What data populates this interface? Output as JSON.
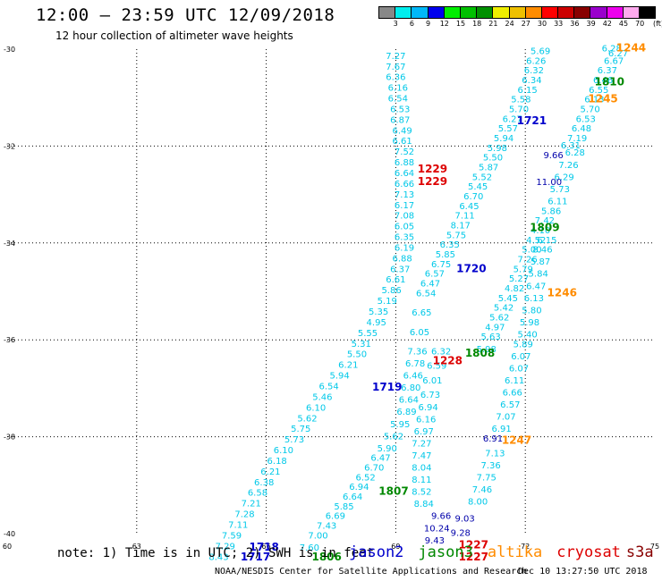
{
  "header": {
    "title": "12:00 – 23:59 UTC 12/09/2018",
    "subtitle": "12 hour collection of altimeter wave heights"
  },
  "scale": {
    "colors": [
      "#888888",
      "#00eeee",
      "#00b8f8",
      "#0000ee",
      "#00ee00",
      "#00c000",
      "#009000",
      "#eeee00",
      "#eec000",
      "#ff8c00",
      "#ff0000",
      "#cc0000",
      "#880000",
      "#9a00cc",
      "#ee00ee",
      "#ffaaee",
      "#000000"
    ],
    "labels": [
      "3",
      "6",
      "9",
      "12",
      "15",
      "18",
      "21",
      "24",
      "27",
      "30",
      "33",
      "36",
      "39",
      "42",
      "45",
      "70"
    ],
    "unit": "(ft)"
  },
  "colors": {
    "jason2": "#0000cc",
    "jason3": "#008800",
    "altika": "#ff8c00",
    "cryosat": "#dd0000",
    "s3a": "#880000",
    "swh": "#00c8e8",
    "swh_dark": "#0000aa",
    "grid": "#000000"
  },
  "map": {
    "x_ticks": [
      "60",
      "63",
      "66",
      "69",
      "72",
      "75"
    ],
    "y_ticks": [
      "-30",
      "-32",
      "-34",
      "-36",
      "-38",
      "-40"
    ]
  },
  "swh_labels": [
    {
      "v": "7.27",
      "lon": 69.0,
      "lat": -30.2
    },
    {
      "v": "7.67",
      "lon": 69.0,
      "lat": -30.42
    },
    {
      "v": "6.36",
      "lon": 69.0,
      "lat": -30.64
    },
    {
      "v": "6.16",
      "lon": 69.05,
      "lat": -30.86
    },
    {
      "v": "6.54",
      "lon": 69.05,
      "lat": -31.08
    },
    {
      "v": "6.53",
      "lon": 69.1,
      "lat": -31.3
    },
    {
      "v": "6.87",
      "lon": 69.1,
      "lat": -31.52
    },
    {
      "v": "6.49",
      "lon": 69.15,
      "lat": -31.74
    },
    {
      "v": "6.61",
      "lon": 69.15,
      "lat": -31.96
    },
    {
      "v": "7.52",
      "lon": 69.2,
      "lat": -32.18
    },
    {
      "v": "6.88",
      "lon": 69.2,
      "lat": -32.4
    },
    {
      "v": "6.64",
      "lon": 69.2,
      "lat": -32.62
    },
    {
      "v": "6.66",
      "lon": 69.2,
      "lat": -32.84
    },
    {
      "v": "7.13",
      "lon": 69.2,
      "lat": -33.06
    },
    {
      "v": "6.17",
      "lon": 69.2,
      "lat": -33.28
    },
    {
      "v": "7.08",
      "lon": 69.2,
      "lat": -33.5
    },
    {
      "v": "6.05",
      "lon": 69.2,
      "lat": -33.72
    },
    {
      "v": "6.35",
      "lon": 69.2,
      "lat": -33.94
    },
    {
      "v": "6.19",
      "lon": 69.2,
      "lat": -34.16
    },
    {
      "v": "6.88",
      "lon": 69.15,
      "lat": -34.38
    },
    {
      "v": "6.37",
      "lon": 69.1,
      "lat": -34.6
    },
    {
      "v": "6.61",
      "lon": 69.0,
      "lat": -34.82
    },
    {
      "v": "5.86",
      "lon": 68.9,
      "lat": -35.04
    },
    {
      "v": "5.19",
      "lon": 68.8,
      "lat": -35.26
    },
    {
      "v": "5.35",
      "lon": 68.6,
      "lat": -35.48
    },
    {
      "v": "4.95",
      "lon": 68.55,
      "lat": -35.7
    },
    {
      "v": "5.55",
      "lon": 68.35,
      "lat": -35.92
    },
    {
      "v": "5.31",
      "lon": 68.2,
      "lat": -36.14
    },
    {
      "v": "5.50",
      "lon": 68.1,
      "lat": -36.36
    },
    {
      "v": "6.21",
      "lon": 67.9,
      "lat": -36.58
    },
    {
      "v": "5.94",
      "lon": 67.7,
      "lat": -36.8
    },
    {
      "v": "6.54",
      "lon": 67.45,
      "lat": -37.02
    },
    {
      "v": "5.46",
      "lon": 67.3,
      "lat": -37.24
    },
    {
      "v": "6.10",
      "lon": 67.15,
      "lat": -37.46
    },
    {
      "v": "5.62",
      "lon": 66.95,
      "lat": -37.68
    },
    {
      "v": "5.75",
      "lon": 66.8,
      "lat": -37.9
    },
    {
      "v": "5.73",
      "lon": 66.65,
      "lat": -38.12
    },
    {
      "v": "6.10",
      "lon": 66.4,
      "lat": -38.34
    },
    {
      "v": "6.18",
      "lon": 66.25,
      "lat": -38.56
    },
    {
      "v": "6.21",
      "lon": 66.1,
      "lat": -38.78
    },
    {
      "v": "6.38",
      "lon": 65.95,
      "lat": -39.0
    },
    {
      "v": "6.58",
      "lon": 65.8,
      "lat": -39.22
    },
    {
      "v": "7.21",
      "lon": 65.65,
      "lat": -39.44
    },
    {
      "v": "7.28",
      "lon": 65.5,
      "lat": -39.66
    },
    {
      "v": "7.11",
      "lon": 65.35,
      "lat": -39.88
    },
    {
      "v": "7.59",
      "lon": 65.2,
      "lat": -40.1
    },
    {
      "v": "7.29",
      "lon": 65.05,
      "lat": -40.32
    },
    {
      "v": "8.43",
      "lon": 64.9,
      "lat": -40.54
    },
    {
      "v": "5.69",
      "lon": 72.35,
      "lat": -30.1
    },
    {
      "v": "6.26",
      "lon": 72.25,
      "lat": -30.3
    },
    {
      "v": "6.32",
      "lon": 72.2,
      "lat": -30.5
    },
    {
      "v": "6.34",
      "lon": 72.15,
      "lat": -30.7
    },
    {
      "v": "6.15",
      "lon": 72.05,
      "lat": -30.9
    },
    {
      "v": "5.58",
      "lon": 71.9,
      "lat": -31.1
    },
    {
      "v": "5.70",
      "lon": 71.85,
      "lat": -31.3
    },
    {
      "v": "6.27",
      "lon": 71.7,
      "lat": -31.5
    },
    {
      "v": "5.57",
      "lon": 71.6,
      "lat": -31.7
    },
    {
      "v": "5.94",
      "lon": 71.5,
      "lat": -31.9
    },
    {
      "v": "5.98",
      "lon": 71.35,
      "lat": -32.1
    },
    {
      "v": "5.50",
      "lon": 71.25,
      "lat": -32.3
    },
    {
      "v": "5.87",
      "lon": 71.15,
      "lat": -32.5
    },
    {
      "v": "5.52",
      "lon": 71.0,
      "lat": -32.7
    },
    {
      "v": "5.45",
      "lon": 70.9,
      "lat": -32.9
    },
    {
      "v": "6.70",
      "lon": 70.8,
      "lat": -33.1
    },
    {
      "v": "6.45",
      "lon": 70.7,
      "lat": -33.3
    },
    {
      "v": "7.11",
      "lon": 70.6,
      "lat": -33.5
    },
    {
      "v": "8.17",
      "lon": 70.5,
      "lat": -33.7
    },
    {
      "v": "5.75",
      "lon": 70.4,
      "lat": -33.9
    },
    {
      "v": "6.35",
      "lon": 70.25,
      "lat": -34.1
    },
    {
      "v": "5.85",
      "lon": 70.15,
      "lat": -34.3
    },
    {
      "v": "6.75",
      "lon": 70.05,
      "lat": -34.5
    },
    {
      "v": "6.57",
      "lon": 69.9,
      "lat": -34.7
    },
    {
      "v": "6.47",
      "lon": 69.8,
      "lat": -34.9
    },
    {
      "v": "6.54",
      "lon": 69.7,
      "lat": -35.1
    },
    {
      "v": "6.65",
      "lon": 69.6,
      "lat": -35.5
    },
    {
      "v": "6.05",
      "lon": 69.55,
      "lat": -35.9
    },
    {
      "v": "7.36",
      "lon": 69.5,
      "lat": -36.3
    },
    {
      "v": "6.78",
      "lon": 69.45,
      "lat": -36.55
    },
    {
      "v": "6.46",
      "lon": 69.4,
      "lat": -36.8
    },
    {
      "v": "6.80",
      "lon": 69.35,
      "lat": -37.05
    },
    {
      "v": "6.64",
      "lon": 69.3,
      "lat": -37.3
    },
    {
      "v": "6.89",
      "lon": 69.25,
      "lat": -37.55
    },
    {
      "v": "5.95",
      "lon": 69.1,
      "lat": -37.8
    },
    {
      "v": "5.62",
      "lon": 68.95,
      "lat": -38.05
    },
    {
      "v": "5.90",
      "lon": 68.8,
      "lat": -38.3
    },
    {
      "v": "6.47",
      "lon": 68.65,
      "lat": -38.5
    },
    {
      "v": "6.70",
      "lon": 68.5,
      "lat": -38.7
    },
    {
      "v": "6.52",
      "lon": 68.3,
      "lat": -38.9
    },
    {
      "v": "6.94",
      "lon": 68.15,
      "lat": -39.1
    },
    {
      "v": "6.64",
      "lon": 68.0,
      "lat": -39.3
    },
    {
      "v": "5.85",
      "lon": 67.8,
      "lat": -39.5
    },
    {
      "v": "6.69",
      "lon": 67.6,
      "lat": -39.7
    },
    {
      "v": "7.43",
      "lon": 67.4,
      "lat": -39.9
    },
    {
      "v": "7.00",
      "lon": 67.2,
      "lat": -40.1
    },
    {
      "v": "7.60",
      "lon": 67.0,
      "lat": -40.35
    },
    {
      "v": "6.28",
      "lon": 74.0,
      "lat": -30.05
    },
    {
      "v": "6.27",
      "lon": 74.15,
      "lat": -30.15
    },
    {
      "v": "6.67",
      "lon": 74.05,
      "lat": -30.3
    },
    {
      "v": "6.37",
      "lon": 73.9,
      "lat": -30.5
    },
    {
      "v": "6.46",
      "lon": 73.8,
      "lat": -30.7
    },
    {
      "v": "6.55",
      "lon": 73.7,
      "lat": -30.9
    },
    {
      "v": "6.13",
      "lon": 73.6,
      "lat": -31.1
    },
    {
      "v": "5.70",
      "lon": 73.5,
      "lat": -31.3
    },
    {
      "v": "6.53",
      "lon": 73.4,
      "lat": -31.5
    },
    {
      "v": "6.48",
      "lon": 73.3,
      "lat": -31.7
    },
    {
      "v": "7.19",
      "lon": 73.2,
      "lat": -31.9
    },
    {
      "v": "6.31",
      "lon": 73.05,
      "lat": -32.05
    },
    {
      "v": "6.28",
      "lon": 73.15,
      "lat": -32.2
    },
    {
      "v": "7.26",
      "lon": 73.0,
      "lat": -32.45
    },
    {
      "v": "6.29",
      "lon": 72.9,
      "lat": -32.7
    },
    {
      "v": "5.73",
      "lon": 72.8,
      "lat": -32.95
    },
    {
      "v": "6.11",
      "lon": 72.75,
      "lat": -33.2
    },
    {
      "v": "5.86",
      "lon": 72.6,
      "lat": -33.4
    },
    {
      "v": "7.42",
      "lon": 72.45,
      "lat": -33.6
    },
    {
      "v": "4.10",
      "lon": 72.35,
      "lat": -33.8
    },
    {
      "v": "4.52",
      "lon": 72.25,
      "lat": -34.0
    },
    {
      "v": "6.15",
      "lon": 72.5,
      "lat": -34.0
    },
    {
      "v": "5.00",
      "lon": 72.15,
      "lat": -34.2
    },
    {
      "v": "8.46",
      "lon": 72.4,
      "lat": -34.2
    },
    {
      "v": "7.26",
      "lon": 72.05,
      "lat": -34.4
    },
    {
      "v": "5.87",
      "lon": 72.35,
      "lat": -34.45
    },
    {
      "v": "5.79",
      "lon": 71.95,
      "lat": -34.6
    },
    {
      "v": "5.84",
      "lon": 72.3,
      "lat": -34.7
    },
    {
      "v": "5.27",
      "lon": 71.85,
      "lat": -34.8
    },
    {
      "v": "6.47",
      "lon": 72.25,
      "lat": -34.95
    },
    {
      "v": "4.82",
      "lon": 71.75,
      "lat": -35.0
    },
    {
      "v": "5.45",
      "lon": 71.6,
      "lat": -35.2
    },
    {
      "v": "6.13",
      "lon": 72.2,
      "lat": -35.2
    },
    {
      "v": "5.42",
      "lon": 71.5,
      "lat": -35.4
    },
    {
      "v": "5.80",
      "lon": 72.15,
      "lat": -35.45
    },
    {
      "v": "5.62",
      "lon": 71.4,
      "lat": -35.6
    },
    {
      "v": "5.98",
      "lon": 72.1,
      "lat": -35.7
    },
    {
      "v": "4.97",
      "lon": 71.3,
      "lat": -35.8
    },
    {
      "v": "5.40",
      "lon": 72.05,
      "lat": -35.95
    },
    {
      "v": "5.63",
      "lon": 71.2,
      "lat": -36.0
    },
    {
      "v": "5.89",
      "lon": 71.95,
      "lat": -36.15
    },
    {
      "v": "5.98",
      "lon": 71.1,
      "lat": -36.25
    },
    {
      "v": "6.07",
      "lon": 71.9,
      "lat": -36.4
    },
    {
      "v": "6.07",
      "lon": 71.85,
      "lat": -36.65
    },
    {
      "v": "6.11",
      "lon": 71.75,
      "lat": -36.9
    },
    {
      "v": "6.66",
      "lon": 71.7,
      "lat": -37.15
    },
    {
      "v": "6.57",
      "lon": 71.65,
      "lat": -37.4
    },
    {
      "v": "7.07",
      "lon": 71.55,
      "lat": -37.65
    },
    {
      "v": "6.91",
      "lon": 71.45,
      "lat": -37.9
    },
    {
      "v": "7.13",
      "lon": 71.3,
      "lat": -38.4
    },
    {
      "v": "7.36",
      "lon": 71.2,
      "lat": -38.65
    },
    {
      "v": "7.75",
      "lon": 71.1,
      "lat": -38.9
    },
    {
      "v": "7.46",
      "lon": 71.0,
      "lat": -39.15
    },
    {
      "v": "8.00",
      "lon": 70.9,
      "lat": -39.4
    },
    {
      "v": "6.32",
      "lon": 70.05,
      "lat": -36.3
    },
    {
      "v": "6.59",
      "lon": 69.95,
      "lat": -36.6
    },
    {
      "v": "6.01",
      "lon": 69.85,
      "lat": -36.9
    },
    {
      "v": "6.73",
      "lon": 69.8,
      "lat": -37.2
    },
    {
      "v": "6.94",
      "lon": 69.75,
      "lat": -37.45
    },
    {
      "v": "6.16",
      "lon": 69.7,
      "lat": -37.7
    },
    {
      "v": "6.97",
      "lon": 69.65,
      "lat": -37.95
    },
    {
      "v": "7.27",
      "lon": 69.6,
      "lat": -38.2
    },
    {
      "v": "7.47",
      "lon": 69.6,
      "lat": -38.45
    },
    {
      "v": "8.04",
      "lon": 69.6,
      "lat": -38.7
    },
    {
      "v": "8.11",
      "lon": 69.6,
      "lat": -38.95
    },
    {
      "v": "8.52",
      "lon": 69.6,
      "lat": -39.2
    },
    {
      "v": "8.84",
      "lon": 69.65,
      "lat": -39.45
    }
  ],
  "swh_dark_labels": [
    {
      "v": "9.66",
      "lon": 72.65,
      "lat": -32.25
    },
    {
      "v": "11.00",
      "lon": 72.55,
      "lat": -32.8
    },
    {
      "v": "9.66",
      "lon": 70.05,
      "lat": -39.7
    },
    {
      "v": "9.03",
      "lon": 70.6,
      "lat": -39.75
    },
    {
      "v": "10.24",
      "lon": 69.95,
      "lat": -39.95
    },
    {
      "v": "9.28",
      "lon": 70.5,
      "lat": -40.05
    },
    {
      "v": "9.43",
      "lon": 69.9,
      "lat": -40.2
    },
    {
      "v": "6.91",
      "lon": 71.25,
      "lat": -38.1
    }
  ],
  "pass_labels": [
    {
      "t": "1244",
      "sat": "altika",
      "lon": 74.45,
      "lat": -30.05
    },
    {
      "t": "1810",
      "sat": "jason3",
      "lon": 73.95,
      "lat": -30.75
    },
    {
      "t": "1245",
      "sat": "altika",
      "lon": 73.8,
      "lat": -31.1
    },
    {
      "t": "1721",
      "sat": "jason2",
      "lon": 72.15,
      "lat": -31.55
    },
    {
      "t": "1229",
      "sat": "cryosat",
      "lon": 69.85,
      "lat": -32.55
    },
    {
      "t": "1229",
      "sat": "cryosat",
      "lon": 69.85,
      "lat": -32.8
    },
    {
      "t": "1809",
      "sat": "jason3",
      "lon": 72.45,
      "lat": -33.75
    },
    {
      "t": "1720",
      "sat": "jason2",
      "lon": 70.75,
      "lat": -34.6
    },
    {
      "t": "1246",
      "sat": "altika",
      "lon": 72.85,
      "lat": -35.1
    },
    {
      "t": "1808",
      "sat": "jason3",
      "lon": 70.95,
      "lat": -36.35
    },
    {
      "t": "1228",
      "sat": "cryosat",
      "lon": 70.2,
      "lat": -36.5
    },
    {
      "t": "1719",
      "sat": "jason2",
      "lon": 68.8,
      "lat": -37.05
    },
    {
      "t": "1247",
      "sat": "altika",
      "lon": 71.8,
      "lat": -38.15
    },
    {
      "t": "1807",
      "sat": "jason3",
      "lon": 68.95,
      "lat": -39.2
    },
    {
      "t": "1718",
      "sat": "jason2",
      "lon": 65.95,
      "lat": -40.35
    },
    {
      "t": "1717",
      "sat": "jason2",
      "lon": 65.75,
      "lat": -40.55
    },
    {
      "t": "1806",
      "sat": "jason3",
      "lon": 67.4,
      "lat": -40.55
    },
    {
      "t": "1227",
      "sat": "cryosat",
      "lon": 70.8,
      "lat": -40.3
    },
    {
      "t": "1227",
      "sat": "cryosat",
      "lon": 70.8,
      "lat": -40.55
    }
  ],
  "footer": {
    "note": "note: 1) Time is in UTC; 2) SWH is in feet",
    "credit": "NOAA/NESDIS Center for Satellite Applications and Research",
    "time": "Dec 10 13:27:50 UTC 2018"
  },
  "legend": {
    "jason2": "jason2",
    "jason3": "jason3",
    "altika": "altika",
    "cryosat": "cryosat",
    "s3a": "s3a"
  }
}
